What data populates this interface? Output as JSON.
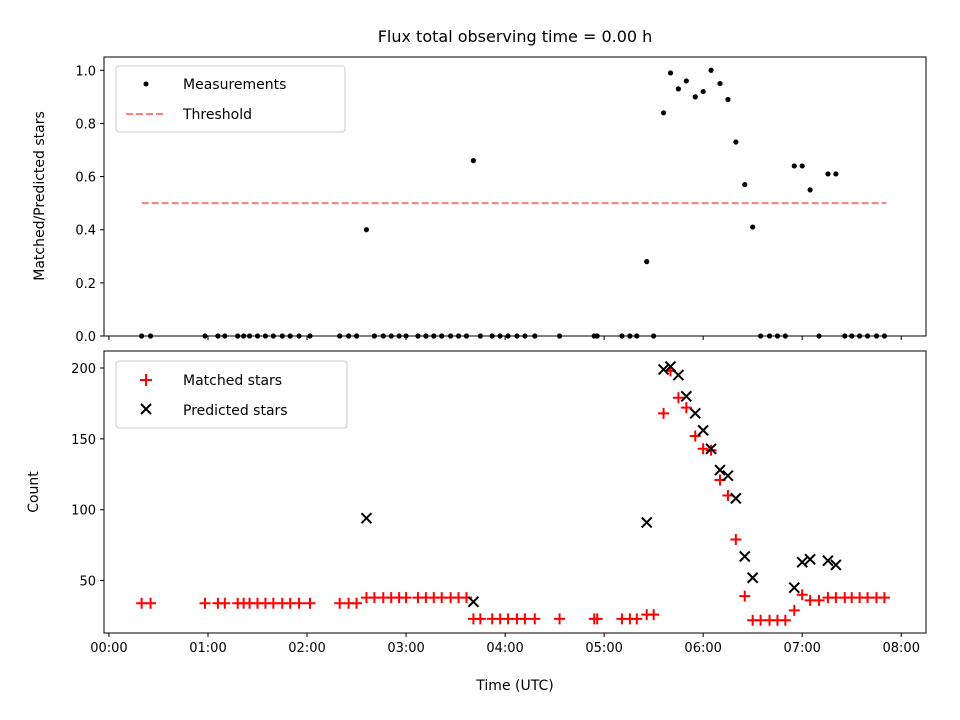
{
  "chart_data": [
    {
      "type": "scatter",
      "title": "Flux total observing time = 0.00 h",
      "xlabel": "",
      "ylabel": "Matched/Predicted stars",
      "xlim": [
        -0.05,
        8.25
      ],
      "ylim": [
        0,
        1.05
      ],
      "yticks": [
        0,
        0.2,
        0.4,
        0.6,
        0.8,
        1.0
      ],
      "ytick_labels": [
        "0.0",
        "0.2",
        "0.4",
        "0.6",
        "0.8",
        "1.0"
      ],
      "xticks": [
        0,
        1,
        2,
        3,
        4,
        5,
        6,
        7,
        8
      ],
      "legend_position": "upper-left",
      "series": [
        {
          "name": "Measurements",
          "marker": "dot",
          "color": "#000000",
          "points": [
            [
              0.33,
              0
            ],
            [
              0.42,
              0
            ],
            [
              0.97,
              0
            ],
            [
              1.1,
              0
            ],
            [
              1.17,
              0
            ],
            [
              1.3,
              0
            ],
            [
              1.36,
              0
            ],
            [
              1.42,
              0
            ],
            [
              1.5,
              0
            ],
            [
              1.58,
              0
            ],
            [
              1.66,
              0
            ],
            [
              1.75,
              0
            ],
            [
              1.83,
              0
            ],
            [
              1.92,
              0
            ],
            [
              2.03,
              0
            ],
            [
              2.33,
              0
            ],
            [
              2.42,
              0
            ],
            [
              2.5,
              0
            ],
            [
              2.6,
              0.4
            ],
            [
              2.68,
              0
            ],
            [
              2.77,
              0
            ],
            [
              2.85,
              0
            ],
            [
              2.93,
              0
            ],
            [
              3.0,
              0
            ],
            [
              3.12,
              0
            ],
            [
              3.2,
              0
            ],
            [
              3.28,
              0
            ],
            [
              3.36,
              0
            ],
            [
              3.45,
              0
            ],
            [
              3.53,
              0
            ],
            [
              3.61,
              0
            ],
            [
              3.68,
              0.66
            ],
            [
              3.75,
              0
            ],
            [
              3.87,
              0
            ],
            [
              3.95,
              0
            ],
            [
              4.03,
              0
            ],
            [
              4.12,
              0
            ],
            [
              4.2,
              0
            ],
            [
              4.3,
              0
            ],
            [
              4.55,
              0
            ],
            [
              4.9,
              0
            ],
            [
              4.93,
              0
            ],
            [
              5.18,
              0
            ],
            [
              5.26,
              0
            ],
            [
              5.33,
              0
            ],
            [
              5.43,
              0.28
            ],
            [
              5.5,
              0
            ],
            [
              5.6,
              0.84
            ],
            [
              5.67,
              0.99
            ],
            [
              5.75,
              0.93
            ],
            [
              5.83,
              0.96
            ],
            [
              5.92,
              0.9
            ],
            [
              6.0,
              0.92
            ],
            [
              6.08,
              1.0
            ],
            [
              6.17,
              0.95
            ],
            [
              6.25,
              0.89
            ],
            [
              6.33,
              0.73
            ],
            [
              6.42,
              0.57
            ],
            [
              6.5,
              0.41
            ],
            [
              6.58,
              0
            ],
            [
              6.67,
              0
            ],
            [
              6.75,
              0
            ],
            [
              6.83,
              0
            ],
            [
              6.92,
              0.64
            ],
            [
              7.0,
              0.64
            ],
            [
              7.08,
              0.55
            ],
            [
              7.17,
              0
            ],
            [
              7.26,
              0.61
            ],
            [
              7.34,
              0.61
            ],
            [
              7.43,
              0
            ],
            [
              7.5,
              0
            ],
            [
              7.58,
              0
            ],
            [
              7.66,
              0
            ],
            [
              7.75,
              0
            ],
            [
              7.83,
              0
            ]
          ]
        },
        {
          "name": "Threshold",
          "style": "dashed",
          "color": "#ff7f7f",
          "x": [
            0.33,
            7.85
          ],
          "y": [
            0.5,
            0.5
          ]
        }
      ]
    },
    {
      "type": "scatter",
      "title": "",
      "xlabel": "Time (UTC)",
      "ylabel": "Count",
      "xlim": [
        -0.05,
        8.25
      ],
      "ylim": [
        13,
        212
      ],
      "yticks": [
        50,
        100,
        150,
        200
      ],
      "ytick_labels": [
        "50",
        "100",
        "150",
        "200"
      ],
      "xticks": [
        0,
        1,
        2,
        3,
        4,
        5,
        6,
        7,
        8
      ],
      "xtick_labels": [
        "00:00",
        "01:00",
        "02:00",
        "03:00",
        "04:00",
        "05:00",
        "06:00",
        "07:00",
        "08:00"
      ],
      "legend_position": "upper-left",
      "series": [
        {
          "name": "Matched stars",
          "marker": "plus",
          "color": "#ff0000",
          "points": [
            [
              0.33,
              34
            ],
            [
              0.42,
              34
            ],
            [
              0.97,
              34
            ],
            [
              1.1,
              34
            ],
            [
              1.17,
              34
            ],
            [
              1.3,
              34
            ],
            [
              1.36,
              34
            ],
            [
              1.42,
              34
            ],
            [
              1.5,
              34
            ],
            [
              1.58,
              34
            ],
            [
              1.66,
              34
            ],
            [
              1.75,
              34
            ],
            [
              1.83,
              34
            ],
            [
              1.92,
              34
            ],
            [
              2.03,
              34
            ],
            [
              2.33,
              34
            ],
            [
              2.42,
              34
            ],
            [
              2.5,
              34
            ],
            [
              2.6,
              38
            ],
            [
              2.68,
              38
            ],
            [
              2.77,
              38
            ],
            [
              2.85,
              38
            ],
            [
              2.93,
              38
            ],
            [
              3.0,
              38
            ],
            [
              3.12,
              38
            ],
            [
              3.2,
              38
            ],
            [
              3.28,
              38
            ],
            [
              3.36,
              38
            ],
            [
              3.45,
              38
            ],
            [
              3.53,
              38
            ],
            [
              3.61,
              38
            ],
            [
              3.68,
              23
            ],
            [
              3.75,
              23
            ],
            [
              3.87,
              23
            ],
            [
              3.95,
              23
            ],
            [
              4.03,
              23
            ],
            [
              4.12,
              23
            ],
            [
              4.2,
              23
            ],
            [
              4.3,
              23
            ],
            [
              4.55,
              23
            ],
            [
              4.9,
              23
            ],
            [
              4.93,
              23
            ],
            [
              5.18,
              23
            ],
            [
              5.26,
              23
            ],
            [
              5.33,
              23
            ],
            [
              5.43,
              26
            ],
            [
              5.5,
              26
            ],
            [
              5.6,
              168
            ],
            [
              5.67,
              198
            ],
            [
              5.75,
              179
            ],
            [
              5.83,
              172
            ],
            [
              5.92,
              152
            ],
            [
              6.0,
              143
            ],
            [
              6.08,
              142
            ],
            [
              6.17,
              121
            ],
            [
              6.25,
              110
            ],
            [
              6.33,
              79
            ],
            [
              6.42,
              39
            ],
            [
              6.5,
              22
            ],
            [
              6.58,
              22
            ],
            [
              6.67,
              22
            ],
            [
              6.75,
              22
            ],
            [
              6.83,
              22
            ],
            [
              6.92,
              29
            ],
            [
              7.0,
              40
            ],
            [
              7.08,
              36
            ],
            [
              7.17,
              36
            ],
            [
              7.26,
              38
            ],
            [
              7.34,
              38
            ],
            [
              7.43,
              38
            ],
            [
              7.5,
              38
            ],
            [
              7.58,
              38
            ],
            [
              7.66,
              38
            ],
            [
              7.75,
              38
            ],
            [
              7.83,
              38
            ]
          ]
        },
        {
          "name": "Predicted stars",
          "marker": "x",
          "color": "#000000",
          "points": [
            [
              2.6,
              94
            ],
            [
              3.68,
              35
            ],
            [
              5.43,
              91
            ],
            [
              5.6,
              199
            ],
            [
              5.67,
              201
            ],
            [
              5.75,
              195
            ],
            [
              5.83,
              180
            ],
            [
              5.92,
              168
            ],
            [
              6.0,
              156
            ],
            [
              6.08,
              143
            ],
            [
              6.17,
              128
            ],
            [
              6.25,
              124
            ],
            [
              6.33,
              108
            ],
            [
              6.42,
              67
            ],
            [
              6.5,
              52
            ],
            [
              6.92,
              45
            ],
            [
              7.0,
              63
            ],
            [
              7.08,
              65
            ],
            [
              7.26,
              64
            ],
            [
              7.34,
              61
            ]
          ]
        }
      ]
    }
  ]
}
